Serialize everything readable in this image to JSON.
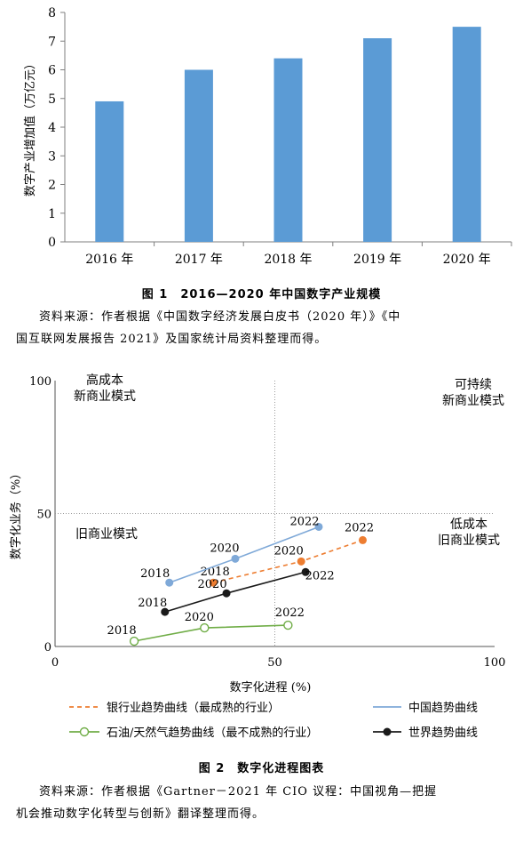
{
  "figure1": {
    "caption": "图 1　2016—2020 年中国数字产业规模",
    "source_line1": "资料来源：作者根据《中国数字经济发展白皮书（2020 年）》《中",
    "source_line2": "国互联网发展报告 2021》及国家统计局资料整理而得。",
    "chart_data": {
      "type": "bar",
      "categories": [
        "2016 年",
        "2017 年",
        "2018 年",
        "2019 年",
        "2020 年"
      ],
      "values": [
        4.9,
        6.0,
        6.4,
        7.1,
        7.5
      ],
      "ylabel": "数字产业增加值（万亿元）",
      "xlabel": "",
      "ylim": [
        0,
        8
      ],
      "yticks": [
        0,
        1,
        2,
        3,
        4,
        5,
        6,
        7,
        8
      ],
      "bar_color": "#5B9BD5",
      "grid": false
    }
  },
  "figure2": {
    "caption": "图 2　数字化进程图表",
    "source_line1": "资料来源：作者根据《Gartner－2021 年 CIO 议程：中国视角—把握",
    "source_line2": "机会推动数字化转型与创新》翻译整理而得。",
    "chart_data": {
      "type": "line",
      "xlabel": "数字化进程 (%)",
      "ylabel": "数字化业务（%）",
      "xlim": [
        0,
        100
      ],
      "ylim": [
        0,
        100
      ],
      "xticks": [
        0,
        50,
        100
      ],
      "yticks": [
        0,
        50,
        100
      ],
      "reference_lines": {
        "x": 50,
        "y": 50
      },
      "quadrants": {
        "top_left": [
          "高成本",
          "新商业模式"
        ],
        "top_right": [
          "可持续",
          "新商业模式"
        ],
        "bottom_left": [
          "旧商业模式"
        ],
        "bottom_right": [
          "低成本",
          "旧商业模式"
        ]
      },
      "series": [
        {
          "name": "银行业趋势曲线（最成熟的行业）",
          "color": "#ED7D31",
          "dash": true,
          "marker": "filled",
          "points": [
            {
              "x": 36,
              "y": 24,
              "label": "2018"
            },
            {
              "x": 56,
              "y": 32,
              "label": "2020"
            },
            {
              "x": 70,
              "y": 40,
              "label": "2022"
            }
          ]
        },
        {
          "name": "中国趋势曲线",
          "color": "#7FA9D8",
          "dash": false,
          "marker": "filled",
          "points": [
            {
              "x": 26,
              "y": 24,
              "label": "2018"
            },
            {
              "x": 41,
              "y": 33,
              "label": "2020"
            },
            {
              "x": 60,
              "y": 45,
              "label": "2022"
            }
          ]
        },
        {
          "name": "石油/天然气趋势曲线（最不成熟的行业）",
          "color": "#70AD47",
          "dash": false,
          "marker": "hollow",
          "points": [
            {
              "x": 18,
              "y": 2,
              "label": "2018"
            },
            {
              "x": 34,
              "y": 7,
              "label": "2020"
            },
            {
              "x": 53,
              "y": 8,
              "label": "2022"
            }
          ]
        },
        {
          "name": "世界趋势曲线",
          "color": "#1A1A1A",
          "dash": false,
          "marker": "filled",
          "points": [
            {
              "x": 25,
              "y": 13,
              "label": "2018"
            },
            {
              "x": 39,
              "y": 20,
              "label": "2020"
            },
            {
              "x": 57,
              "y": 28,
              "label": "2022"
            }
          ]
        }
      ]
    }
  }
}
